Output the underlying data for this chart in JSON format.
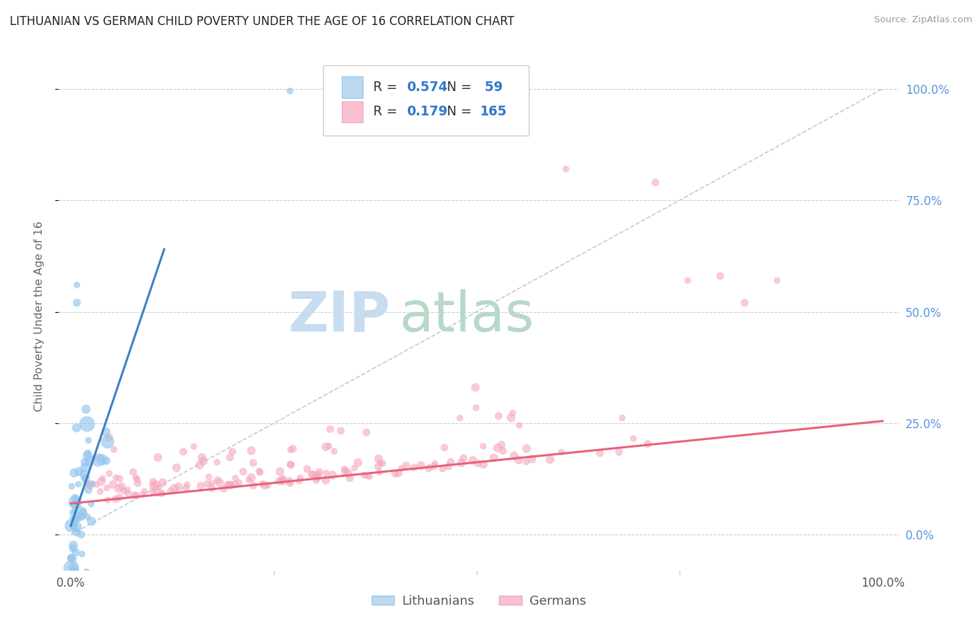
{
  "title": "LITHUANIAN VS GERMAN CHILD POVERTY UNDER THE AGE OF 16 CORRELATION CHART",
  "source": "Source: ZipAtlas.com",
  "ylabel": "Child Poverty Under the Age of 16",
  "blue_R": 0.574,
  "blue_N": 59,
  "pink_R": 0.179,
  "pink_N": 165,
  "blue_color": "#93C6ED",
  "pink_color": "#F5A8BE",
  "blue_line_color": "#3A7EC6",
  "pink_line_color": "#E8607A",
  "diagonal_color": "#C0C8D8",
  "background_color": "#FFFFFF",
  "grid_color": "#CCCCCC",
  "legend_label_blue": "Lithuanians",
  "legend_label_pink": "Germans",
  "legend_text_color": "#333333",
  "legend_value_color": "#3377CC",
  "right_tick_color": "#5599DD",
  "title_color": "#222222",
  "source_color": "#999999",
  "ylabel_color": "#666666",
  "seed": 12345
}
